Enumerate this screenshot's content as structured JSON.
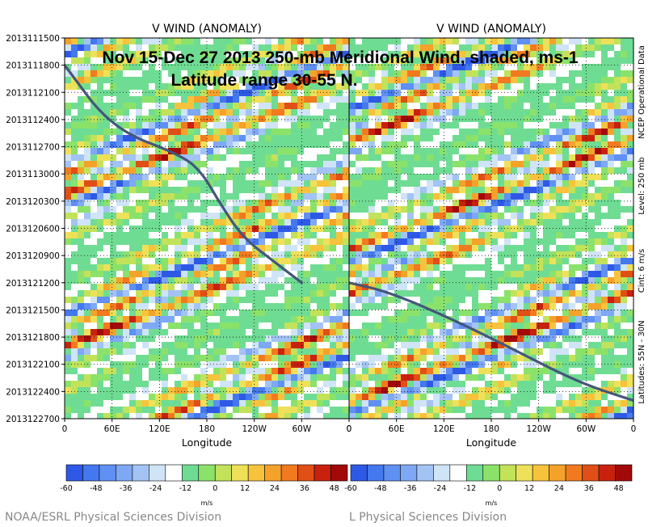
{
  "chart_data": [
    {
      "type": "heatmap",
      "title": "V WIND (ANOMALY)",
      "xlabel": "Longitude",
      "x_ticks": [
        "0",
        "60E",
        "120E",
        "180",
        "120W",
        "60W",
        "0"
      ],
      "y_ticks": [
        "2013111500",
        "2013111800",
        "2013112100",
        "2013112400",
        "2013112700",
        "2013113000",
        "2013120300",
        "2013120600",
        "2013120900",
        "2013121200",
        "2013121500",
        "2013121800",
        "2013122100",
        "2013122400",
        "2013122700"
      ],
      "grid": true,
      "track": [
        {
          "lon": 0,
          "date": "2013111800"
        },
        {
          "lon": 60,
          "date": "2013112500"
        },
        {
          "lon": 150,
          "date": "2013112800"
        },
        {
          "lon": 175,
          "date": "2013113000"
        },
        {
          "lon": 195,
          "date": "2013120300"
        },
        {
          "lon": 225,
          "date": "2013120700"
        },
        {
          "lon": 270,
          "date": "2013121000"
        },
        {
          "lon": 300,
          "date": "2013121200"
        }
      ]
    },
    {
      "type": "heatmap",
      "title": "V WIND (ANOMALY)",
      "xlabel": "Longitude",
      "x_ticks": [
        "0",
        "60E",
        "120E",
        "180",
        "120W",
        "60W",
        "0"
      ],
      "grid": true,
      "track": [
        {
          "lon": 0,
          "date": "2013121200"
        },
        {
          "lon": 50,
          "date": "2013121300"
        },
        {
          "lon": 130,
          "date": "2013121600"
        },
        {
          "lon": 200,
          "date": "2013121900"
        },
        {
          "lon": 290,
          "date": "2013122300"
        },
        {
          "lon": 360,
          "date": "2013122500"
        }
      ]
    }
  ],
  "colorbar": {
    "ticks": [
      "-60",
      "-48",
      "-36",
      "-24",
      "-12",
      "0",
      "12",
      "24",
      "36",
      "48"
    ],
    "unit": "m/s",
    "colors": [
      "#2e59e6",
      "#4478ee",
      "#5f90f2",
      "#7ea8f4",
      "#a3c3f4",
      "#cfe4f7",
      "#ffffff",
      "#6fdc93",
      "#8be26a",
      "#c2e25a",
      "#eee159",
      "#f7c33c",
      "#f5a22a",
      "#f17a1f",
      "#e04f16",
      "#c8210e",
      "#a20a0a"
    ]
  },
  "overlay": {
    "line1": "Nov 15-Dec 27 2013 250-mb Meridional Wind, shaded, ms-1",
    "line2": "Latitude range 30-55 N."
  },
  "side_labels": [
    "NCEP Operational Data",
    "Level: 250 mb",
    "Cint: 6 m/s",
    "Latitudes: 55N - 30N"
  ],
  "credit": "NOAA/ESRL Physical Sciences Division"
}
